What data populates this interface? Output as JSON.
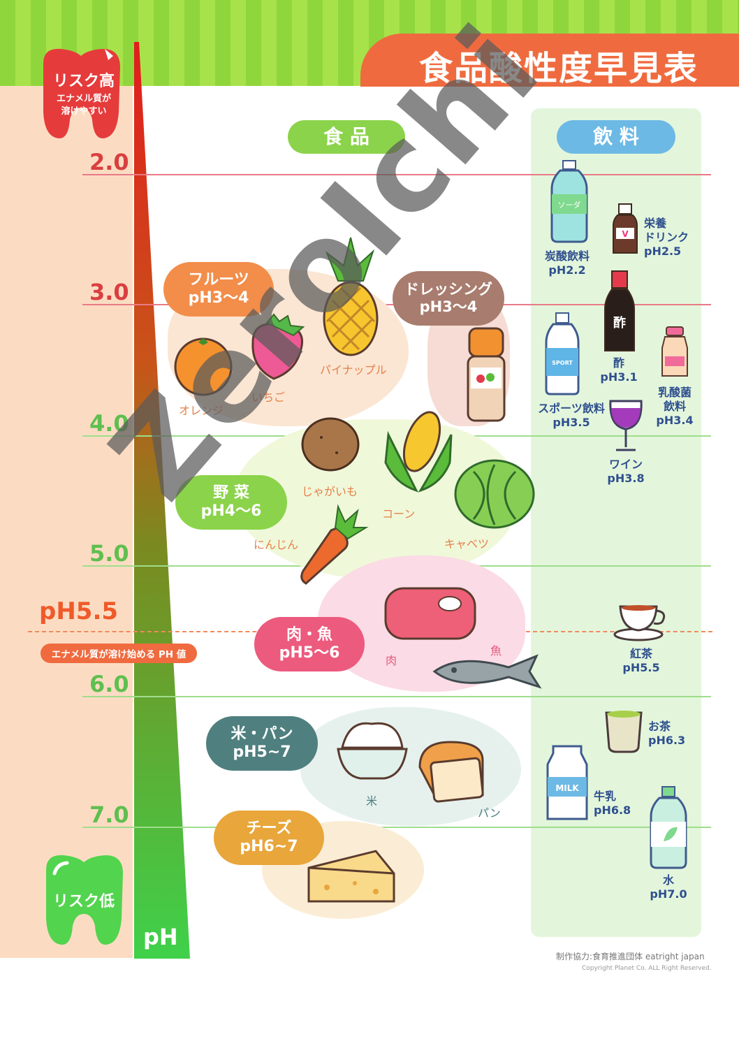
{
  "title": "食品酸性度早見表",
  "headers": {
    "food": "食 品",
    "drinks": "飲 料"
  },
  "risk_high": {
    "label": "リスク高",
    "sub1": "エナメル質が",
    "sub2": "溶けやすい",
    "color": "#e63b3b"
  },
  "risk_low": {
    "label": "リスク低",
    "color": "#52d44e"
  },
  "ph_axis_label": "pH",
  "critical": {
    "value": "pH5.5",
    "note": "エナメル質が溶け始める PH 値"
  },
  "ticks": [
    {
      "label": "2.0",
      "color": "#d93f3f"
    },
    {
      "label": "3.0",
      "color": "#d93f3f"
    },
    {
      "label": "4.0",
      "color": "#5fbf4f"
    },
    {
      "label": "5.0",
      "color": "#5fbf4f"
    },
    {
      "label": "6.0",
      "color": "#5fbf4f"
    },
    {
      "label": "7.0",
      "color": "#5fbf4f"
    }
  ],
  "food_groups": {
    "fruits": {
      "name": "フルーツ",
      "range": "pH3～4",
      "color": "#f28d4a"
    },
    "dressing": {
      "name": "ドレッシング",
      "range": "pH3～4",
      "color": "#a87c6e"
    },
    "vegetables": {
      "name": "野 菜",
      "range": "pH4～6",
      "color": "#8bd34a"
    },
    "meat_fish": {
      "name": "肉・魚",
      "range": "pH5～6",
      "color": "#ec5a7d"
    },
    "rice_bread": {
      "name": "米・パン",
      "range": "pH5~7",
      "color": "#4f7f7f"
    },
    "cheese": {
      "name": "チーズ",
      "range": "pH6~7",
      "color": "#e8a63b"
    }
  },
  "food_items": {
    "orange": "オレンジ",
    "strawberry": "いちご",
    "pineapple": "パイナップル",
    "potato": "じゃがいも",
    "corn": "コーン",
    "cabbage": "キャベツ",
    "carrot": "にんじん",
    "meat": "肉",
    "fish": "魚",
    "rice": "米",
    "bread": "パン"
  },
  "drinks": {
    "soda": {
      "name": "炭酸飲料",
      "ph": "pH2.2",
      "bottle_text": "ソーダ"
    },
    "energy": {
      "name1": "栄養",
      "name2": "ドリンク",
      "ph": "pH2.5",
      "bottle_text": "V"
    },
    "vinegar": {
      "name": "酢",
      "ph": "pH3.1",
      "bottle_text": "酢"
    },
    "sports": {
      "name": "スポーツ飲料",
      "ph": "pH3.5",
      "bottle_text": "SPORT"
    },
    "lactic": {
      "name1": "乳酸菌",
      "name2": "飲料",
      "ph": "pH3.4"
    },
    "wine": {
      "name": "ワイン",
      "ph": "pH3.8"
    },
    "tea": {
      "name": "紅茶",
      "ph": "pH5.5"
    },
    "greentea": {
      "name": "お茶",
      "ph": "pH6.3"
    },
    "milk": {
      "name": "牛乳",
      "ph": "pH6.8",
      "bottle_text": "MILK"
    },
    "water": {
      "name": "水",
      "ph": "pH7.0"
    }
  },
  "watermark": "ZeroIchi",
  "footer": {
    "credit": "制作協力:食育推進団体 eatright japan",
    "copyright": "Copyright Planet Co. ALL Right Reserved."
  }
}
